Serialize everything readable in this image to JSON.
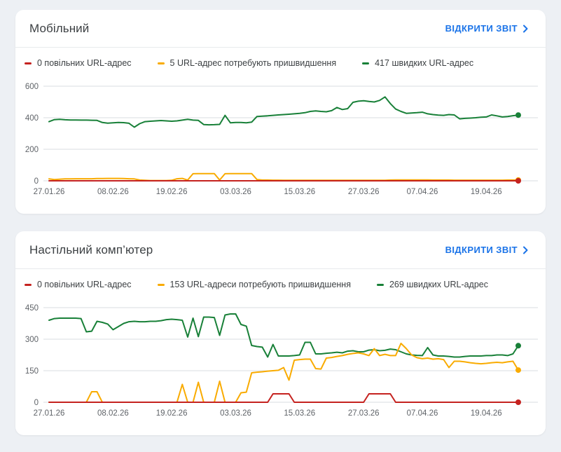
{
  "page": {
    "background": "#edf0f4"
  },
  "cards": [
    {
      "title": "Мобільний",
      "open_report_label": "ВІДКРИТИ ЗВІТ"
    },
    {
      "title": "Настільний комп’ютер",
      "open_report_label": "ВІДКРИТИ ЗВІТ"
    }
  ],
  "colors": {
    "slow": "#c5221f",
    "needs_improvement": "#f9ab00",
    "fast": "#188038",
    "link": "#1a73e8",
    "axis_text": "#5f6368",
    "gridline": "#dadce0"
  },
  "chart_data": [
    {
      "type": "line",
      "device": "Мобільний",
      "title": "Мобільний",
      "x_tick_labels": [
        "27.01.26",
        "08.02.26",
        "19.02.26",
        "03.03.26",
        "15.03.26",
        "27.03.26",
        "07.04.26",
        "19.04.26"
      ],
      "x_tick_days": [
        0,
        12,
        23,
        35,
        47,
        59,
        70,
        82
      ],
      "total_days": 88,
      "ylim": [
        0,
        600
      ],
      "yticks": [
        0,
        200,
        400,
        600
      ],
      "grid": true,
      "legend_position": "top",
      "series": [
        {
          "name": "0 повільних URL-адрес",
          "color": "#c5221f",
          "end_value": 0,
          "values": [
            0,
            0,
            0,
            0,
            0,
            0,
            0,
            0,
            0,
            0,
            0,
            0,
            0,
            0,
            0,
            0,
            0,
            0,
            0,
            0,
            0,
            0,
            0,
            0,
            0,
            0,
            0,
            0,
            0,
            0,
            0,
            0,
            0,
            0,
            0,
            0,
            0,
            0,
            0,
            0,
            0,
            0,
            0,
            0,
            0,
            0,
            0,
            0,
            0,
            0,
            0,
            0,
            0,
            0,
            0,
            0,
            0,
            0,
            0,
            0,
            0,
            0,
            0,
            0,
            0,
            0,
            0,
            0,
            0,
            0,
            0,
            0,
            0,
            0,
            0,
            0,
            0,
            0,
            0,
            0,
            0,
            0,
            0,
            0,
            0,
            0,
            0,
            0,
            0
          ]
        },
        {
          "name": "5 URL-адрес потребують пришвидшення",
          "color": "#f9ab00",
          "end_value": 5,
          "values": [
            12,
            8,
            10,
            12,
            12,
            13,
            13,
            13,
            13,
            14,
            14,
            15,
            15,
            15,
            14,
            13,
            12,
            5,
            3,
            2,
            2,
            2,
            2,
            3,
            13,
            15,
            5,
            45,
            46,
            46,
            46,
            46,
            5,
            45,
            46,
            46,
            46,
            46,
            46,
            8,
            5,
            5,
            4,
            4,
            3,
            3,
            3,
            3,
            3,
            3,
            3,
            3,
            3,
            3,
            3,
            3,
            3,
            3,
            3,
            3,
            3,
            3,
            3,
            3,
            5,
            6,
            6,
            6,
            6,
            6,
            6,
            6,
            5,
            5,
            5,
            5,
            4,
            4,
            4,
            4,
            4,
            4,
            4,
            4,
            4,
            4,
            5,
            5,
            5
          ]
        },
        {
          "name": "417 швидких URL-адрес",
          "color": "#188038",
          "end_value": 417,
          "values": [
            375,
            388,
            390,
            387,
            386,
            386,
            385,
            385,
            384,
            383,
            370,
            366,
            368,
            370,
            369,
            365,
            340,
            362,
            375,
            378,
            380,
            382,
            380,
            378,
            380,
            385,
            390,
            385,
            383,
            357,
            355,
            356,
            358,
            415,
            368,
            370,
            370,
            368,
            372,
            408,
            410,
            412,
            415,
            418,
            420,
            422,
            425,
            428,
            432,
            440,
            443,
            440,
            438,
            445,
            465,
            452,
            458,
            498,
            505,
            508,
            503,
            500,
            510,
            532,
            490,
            455,
            440,
            428,
            430,
            432,
            435,
            425,
            420,
            417,
            415,
            420,
            418,
            393,
            396,
            398,
            400,
            403,
            405,
            418,
            412,
            405,
            408,
            413,
            417
          ]
        }
      ]
    },
    {
      "type": "line",
      "device": "Настільний комп’ютер",
      "title": "Настільний комп’ютер",
      "x_tick_labels": [
        "27.01.26",
        "08.02.26",
        "19.02.26",
        "03.03.26",
        "15.03.26",
        "27.03.26",
        "07.04.26",
        "19.04.26"
      ],
      "x_tick_days": [
        0,
        12,
        23,
        35,
        47,
        59,
        70,
        82
      ],
      "total_days": 88,
      "ylim": [
        0,
        450
      ],
      "yticks": [
        0,
        150,
        300,
        450
      ],
      "grid": true,
      "legend_position": "top",
      "series": [
        {
          "name": "0 повільних URL-адрес",
          "color": "#c5221f",
          "end_value": 0,
          "values": [
            0,
            0,
            0,
            0,
            0,
            0,
            0,
            0,
            0,
            0,
            0,
            0,
            0,
            0,
            0,
            0,
            0,
            0,
            0,
            0,
            0,
            0,
            0,
            0,
            0,
            0,
            0,
            0,
            0,
            0,
            0,
            0,
            0,
            0,
            0,
            0,
            0,
            0,
            0,
            0,
            0,
            0,
            40,
            40,
            40,
            40,
            0,
            0,
            0,
            0,
            0,
            0,
            0,
            0,
            0,
            0,
            0,
            0,
            0,
            0,
            40,
            40,
            40,
            40,
            40,
            0,
            0,
            0,
            0,
            0,
            0,
            0,
            0,
            0,
            0,
            0,
            0,
            0,
            0,
            0,
            0,
            0,
            0,
            0,
            0,
            0,
            0,
            0,
            0
          ]
        },
        {
          "name": "153 URL-адреси потребують пришвидшення",
          "color": "#f9ab00",
          "end_value": 153,
          "values": [
            0,
            0,
            0,
            0,
            0,
            0,
            0,
            0,
            50,
            50,
            0,
            0,
            0,
            0,
            0,
            0,
            0,
            0,
            0,
            0,
            0,
            0,
            0,
            0,
            0,
            85,
            0,
            0,
            95,
            0,
            0,
            0,
            100,
            0,
            0,
            0,
            45,
            48,
            140,
            143,
            145,
            148,
            150,
            152,
            165,
            105,
            200,
            203,
            205,
            205,
            160,
            158,
            210,
            213,
            218,
            222,
            228,
            232,
            235,
            230,
            222,
            255,
            222,
            228,
            222,
            222,
            280,
            255,
            225,
            212,
            207,
            210,
            205,
            207,
            203,
            165,
            195,
            195,
            192,
            188,
            185,
            183,
            185,
            188,
            190,
            188,
            192,
            195,
            153
          ]
        },
        {
          "name": "269 швидких URL-адрес",
          "color": "#188038",
          "end_value": 269,
          "values": [
            390,
            398,
            400,
            400,
            400,
            400,
            398,
            335,
            338,
            385,
            380,
            372,
            345,
            360,
            375,
            383,
            385,
            383,
            383,
            385,
            385,
            388,
            393,
            395,
            393,
            390,
            310,
            400,
            312,
            405,
            405,
            403,
            318,
            415,
            420,
            420,
            370,
            362,
            270,
            265,
            262,
            215,
            275,
            220,
            220,
            220,
            222,
            225,
            285,
            285,
            230,
            230,
            233,
            235,
            238,
            235,
            243,
            245,
            240,
            240,
            248,
            250,
            245,
            247,
            253,
            250,
            240,
            230,
            225,
            223,
            222,
            260,
            225,
            220,
            220,
            218,
            215,
            215,
            218,
            220,
            220,
            220,
            222,
            222,
            225,
            225,
            222,
            230,
            269
          ]
        }
      ]
    }
  ]
}
